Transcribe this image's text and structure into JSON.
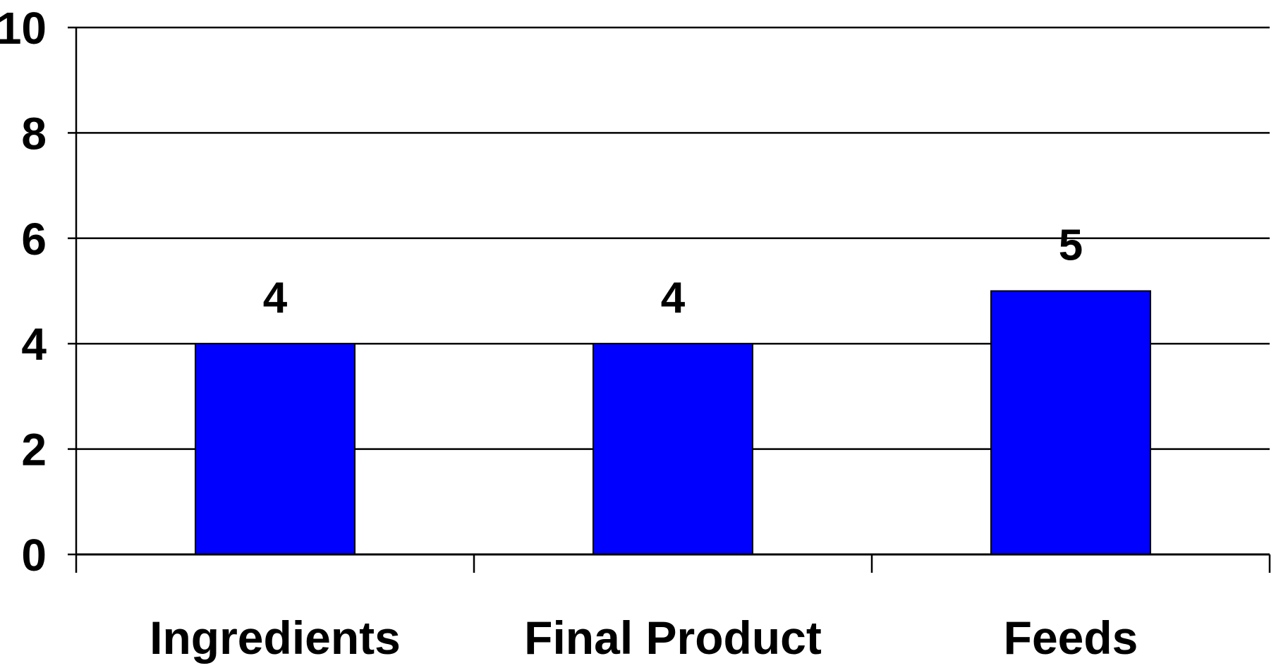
{
  "chart_data": {
    "type": "bar",
    "title": "",
    "xlabel": "",
    "ylabel": "",
    "categories": [
      "Ingredients",
      "Final Product",
      "Feeds"
    ],
    "values": [
      4,
      4,
      5
    ],
    "data_labels": [
      "4",
      "4",
      "5"
    ],
    "ylim": [
      0,
      10
    ],
    "y_ticks": [
      0,
      2,
      4,
      6,
      8,
      10
    ],
    "y_tick_labels": [
      "0",
      "2",
      "4",
      "6",
      "8",
      "10"
    ],
    "grid": true,
    "legend": "none",
    "bar_color": "#0000FF",
    "bar_edge_color": "#000000",
    "grid_color": "#000000"
  }
}
